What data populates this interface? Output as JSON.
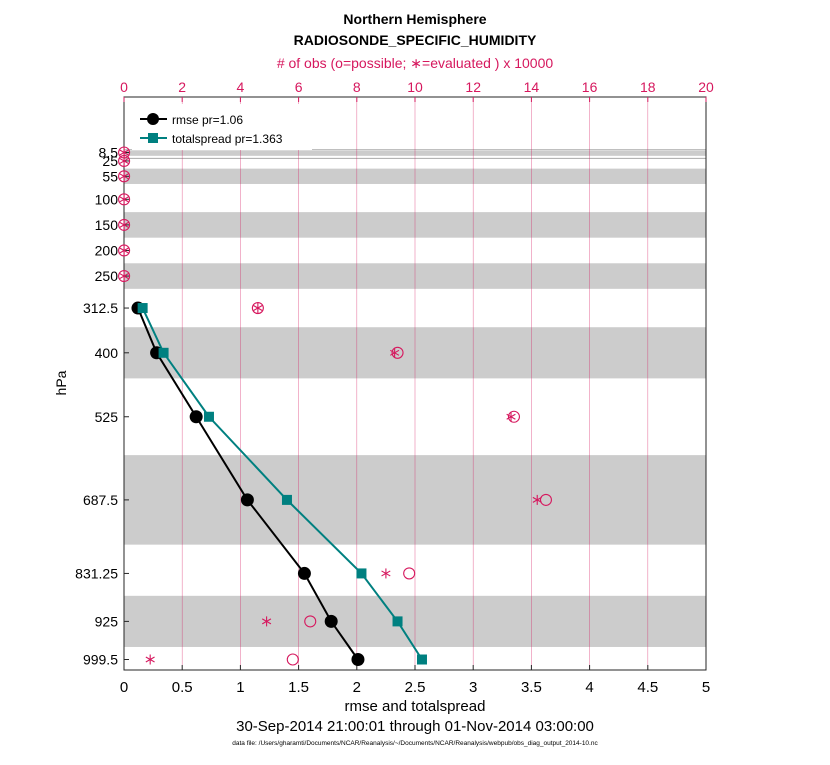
{
  "chart_data": {
    "type": "line",
    "title_line1": "Northern Hemisphere",
    "title_line2": "RADIOSONDE_SPECIFIC_HUMIDITY",
    "top_axis_label": "# of obs (o=possible; ∗=evaluated ) x 10000",
    "xlabel": "rmse and totalspread",
    "ylabel": "hPa",
    "date_range": "30-Sep-2014 21:00:01 through 01-Nov-2014 03:00:00",
    "footnote": "data file: /Users/gharamti/Documents/NCAR/Reanalysis/~/Documents/NCAR/Reanalysis/webpub/obs_diag_output_2014-10.nc",
    "xlim": [
      0,
      5
    ],
    "x_ticks": [
      "0",
      "0.5",
      "1",
      "1.5",
      "2",
      "2.5",
      "3",
      "3.5",
      "4",
      "4.5",
      "5"
    ],
    "top_xlim": [
      0,
      20
    ],
    "top_ticks": [
      "0",
      "2",
      "4",
      "6",
      "8",
      "10",
      "12",
      "14",
      "16",
      "18",
      "20"
    ],
    "levels": [
      8.5,
      25,
      55,
      100,
      150,
      200,
      250,
      312.5,
      400,
      525,
      687.5,
      831.25,
      925,
      999.5
    ],
    "level_labels": [
      "8.5",
      "25",
      "55",
      "100",
      "150",
      "200",
      "250",
      "312.5",
      "400",
      "525",
      "687.5",
      "831.25",
      "925",
      "999.5"
    ],
    "shaded_bands": [
      [
        5,
        15
      ],
      [
        40,
        70
      ],
      [
        125,
        175
      ],
      [
        225,
        275
      ],
      [
        350,
        450
      ],
      [
        600,
        775
      ],
      [
        875,
        975
      ]
    ],
    "series": [
      {
        "name": "rmse",
        "legend": "rmse pr=1.06",
        "color": "#000000",
        "marker": "circle",
        "levels": [
          312.5,
          400,
          525,
          687.5,
          831.25,
          925,
          999.5
        ],
        "values": [
          0.12,
          0.28,
          0.62,
          1.06,
          1.55,
          1.78,
          2.01
        ]
      },
      {
        "name": "totalspread",
        "legend": "totalspread pr=1.363",
        "color": "#008080",
        "marker": "square",
        "levels": [
          312.5,
          400,
          525,
          687.5,
          831.25,
          925,
          999.5
        ],
        "values": [
          0.16,
          0.34,
          0.73,
          1.4,
          2.04,
          2.35,
          2.56
        ]
      }
    ],
    "obs_possible": {
      "color": "#d6185e",
      "marker": "circle-open",
      "levels": [
        8.5,
        25,
        55,
        100,
        150,
        200,
        250,
        312.5,
        400,
        525,
        687.5,
        831.25,
        925,
        999.5
      ],
      "values": [
        0.003,
        0.003,
        0.003,
        0.003,
        0.003,
        0.003,
        0.003,
        4.6,
        9.4,
        13.4,
        14.5,
        9.8,
        6.4,
        5.8
      ]
    },
    "obs_evaluated": {
      "color": "#d6185e",
      "marker": "asterisk",
      "levels": [
        8.5,
        25,
        55,
        100,
        150,
        200,
        250,
        312.5,
        400,
        525,
        687.5,
        831.25,
        925,
        999.5
      ],
      "values": [
        0.003,
        0.003,
        0.003,
        0.003,
        0.003,
        0.003,
        0.003,
        4.6,
        9.3,
        13.3,
        14.2,
        9.0,
        4.9,
        0.9
      ]
    }
  }
}
